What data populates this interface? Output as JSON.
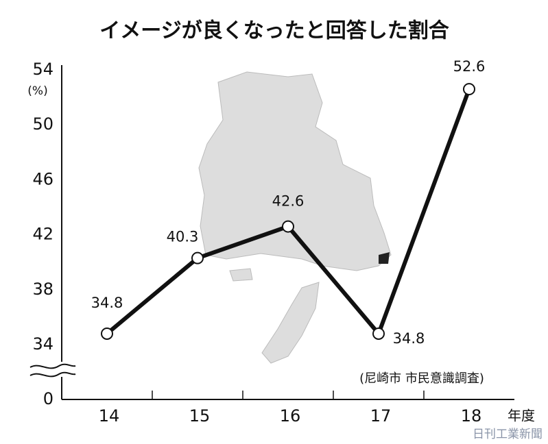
{
  "chart_data": {
    "type": "line",
    "title": "イメージが良くなったと回答した割合",
    "y_unit": "(%)",
    "x_unit": "年度",
    "source": "(尼崎市 市民意識調査)",
    "credit": "日刊工業新聞",
    "categories": [
      "14",
      "15",
      "16",
      "17",
      "18"
    ],
    "values": [
      34.8,
      40.3,
      42.6,
      34.8,
      52.6
    ],
    "color": "#111111",
    "ylim": [
      34,
      54
    ],
    "yticks": [
      0,
      34,
      38,
      42,
      46,
      50,
      54
    ],
    "axis_break": true
  }
}
